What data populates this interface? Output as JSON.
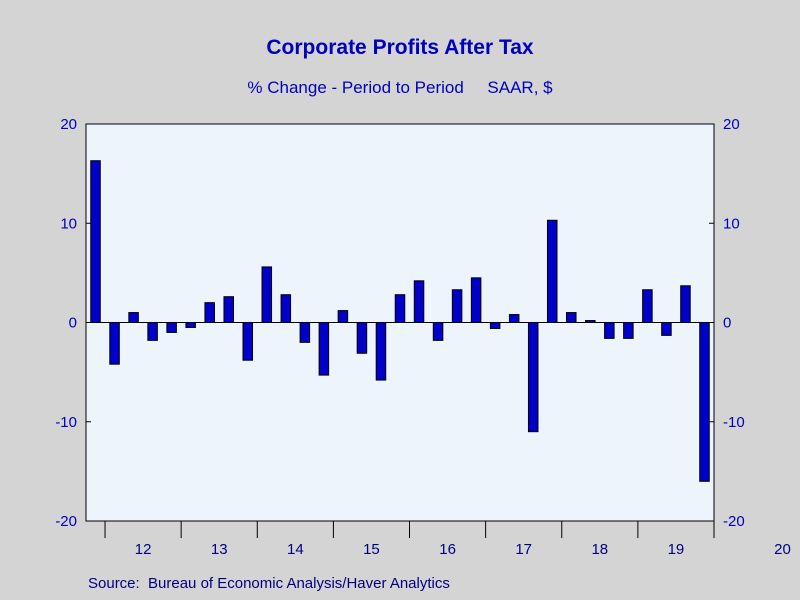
{
  "chart_data": {
    "type": "bar",
    "title": "Corporate Profits After Tax",
    "subtitle": "% Change - Period to Period     SAAR, $",
    "source": "Source:  Bureau of Economic Analysis/Haver Analytics",
    "ylim": [
      -20,
      20
    ],
    "yticks": [
      -20,
      -10,
      0,
      10,
      20
    ],
    "y_axis_both_sides": true,
    "grid": false,
    "x_year_labels": [
      "12",
      "13",
      "14",
      "15",
      "16",
      "17",
      "18",
      "19",
      "20"
    ],
    "x_start": "2011-Q4",
    "frequency": "quarterly",
    "values": [
      16.3,
      -4.2,
      1.0,
      -1.8,
      -1.0,
      -0.5,
      2.0,
      2.6,
      -3.8,
      5.6,
      2.8,
      -2.0,
      -5.3,
      1.2,
      -3.1,
      -5.8,
      2.8,
      4.2,
      -1.8,
      3.3,
      4.5,
      -0.6,
      0.8,
      -11.0,
      10.3,
      1.0,
      0.2,
      -1.6,
      -1.6,
      3.3,
      -1.3,
      3.7,
      -16.0
    ],
    "colors": {
      "bar_fill": "#0000c8",
      "bar_stroke": "#000000",
      "plot_background": "#eef4fc",
      "page_background": "#d4d4d4",
      "text": "#0000c0"
    }
  }
}
